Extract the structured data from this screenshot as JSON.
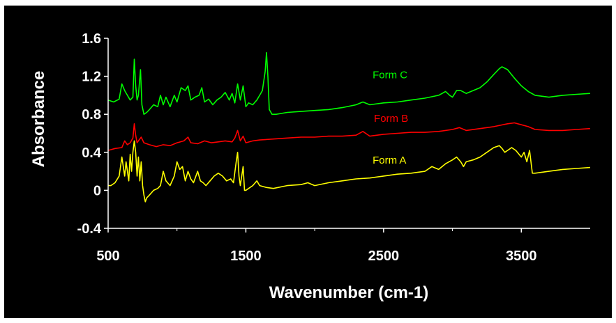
{
  "chart_data": {
    "type": "line",
    "title": "",
    "xlabel": "Wavenumber (cm-1)",
    "ylabel": "Absorbance",
    "xlim": [
      500,
      4000
    ],
    "ylim": [
      -0.4,
      1.6
    ],
    "xticks": [
      500,
      1500,
      2500,
      3500
    ],
    "yticks": [
      -0.4,
      0,
      0.4,
      0.8,
      1.2,
      1.6
    ],
    "xtick_labels": [
      "500",
      "1500",
      "2500",
      "3500"
    ],
    "ytick_labels": [
      "-0.4",
      "0",
      "0.4",
      "0.8",
      "1.2",
      "1.6"
    ],
    "grid": false,
    "legend": "inline labels",
    "background": "#000000",
    "axis_color": "#ffffff",
    "series": [
      {
        "name": "Form C",
        "color": "#00ff00",
        "label_at": [
          2420,
          1.18
        ],
        "x": [
          500,
          540,
          580,
          600,
          620,
          640,
          660,
          680,
          690,
          700,
          710,
          720,
          735,
          745,
          760,
          780,
          800,
          830,
          860,
          880,
          900,
          920,
          950,
          980,
          1000,
          1030,
          1060,
          1080,
          1100,
          1130,
          1160,
          1180,
          1200,
          1230,
          1260,
          1290,
          1320,
          1350,
          1380,
          1400,
          1420,
          1440,
          1460,
          1480,
          1500,
          1520,
          1550,
          1580,
          1600,
          1620,
          1640,
          1650,
          1660,
          1670,
          1690,
          1720,
          1800,
          1900,
          2000,
          2100,
          2200,
          2300,
          2350,
          2400,
          2500,
          2600,
          2700,
          2800,
          2900,
          2950,
          2980,
          3000,
          3030,
          3060,
          3100,
          3150,
          3200,
          3250,
          3300,
          3340,
          3360,
          3400,
          3450,
          3500,
          3550,
          3600,
          3700,
          3800,
          3900,
          4000
        ],
        "y": [
          0.95,
          0.93,
          0.96,
          1.12,
          1.05,
          1.0,
          0.95,
          0.98,
          1.38,
          1.1,
          0.95,
          1.0,
          1.27,
          0.9,
          0.8,
          0.82,
          0.85,
          0.9,
          0.88,
          1.0,
          0.9,
          0.98,
          0.88,
          1.0,
          0.93,
          1.08,
          1.05,
          1.1,
          0.95,
          0.98,
          1.0,
          1.08,
          0.93,
          0.96,
          0.9,
          0.95,
          0.98,
          1.03,
          0.95,
          1.02,
          0.92,
          1.12,
          0.95,
          1.1,
          0.88,
          0.92,
          0.9,
          0.95,
          1.0,
          1.05,
          1.25,
          1.45,
          1.2,
          0.85,
          0.8,
          0.8,
          0.82,
          0.83,
          0.84,
          0.85,
          0.87,
          0.9,
          0.93,
          0.9,
          0.92,
          0.93,
          0.95,
          0.97,
          1.0,
          1.04,
          1.0,
          0.98,
          1.05,
          1.05,
          1.02,
          1.05,
          1.08,
          1.14,
          1.22,
          1.28,
          1.3,
          1.27,
          1.18,
          1.1,
          1.04,
          1.0,
          0.98,
          1.0,
          1.01,
          1.02
        ]
      },
      {
        "name": "Form B",
        "color": "#ff0000",
        "label_at": [
          2430,
          0.72
        ],
        "x": [
          500,
          550,
          600,
          620,
          640,
          660,
          680,
          690,
          700,
          710,
          720,
          740,
          760,
          800,
          850,
          900,
          950,
          1000,
          1050,
          1080,
          1100,
          1150,
          1200,
          1250,
          1300,
          1350,
          1400,
          1420,
          1440,
          1460,
          1480,
          1500,
          1550,
          1600,
          1700,
          1800,
          1900,
          2000,
          2100,
          2200,
          2300,
          2350,
          2400,
          2500,
          2600,
          2700,
          2800,
          2900,
          3000,
          3050,
          3100,
          3200,
          3300,
          3400,
          3450,
          3500,
          3550,
          3600,
          3700,
          3800,
          3900,
          4000
        ],
        "y": [
          0.42,
          0.44,
          0.45,
          0.52,
          0.48,
          0.5,
          0.55,
          0.7,
          0.58,
          0.5,
          0.52,
          0.56,
          0.5,
          0.48,
          0.46,
          0.48,
          0.47,
          0.5,
          0.52,
          0.56,
          0.5,
          0.49,
          0.52,
          0.5,
          0.51,
          0.52,
          0.51,
          0.55,
          0.63,
          0.52,
          0.57,
          0.5,
          0.52,
          0.53,
          0.54,
          0.55,
          0.56,
          0.56,
          0.57,
          0.57,
          0.58,
          0.62,
          0.57,
          0.59,
          0.6,
          0.61,
          0.61,
          0.62,
          0.64,
          0.66,
          0.63,
          0.65,
          0.67,
          0.7,
          0.71,
          0.69,
          0.67,
          0.64,
          0.63,
          0.63,
          0.64,
          0.65
        ]
      },
      {
        "name": "Form A",
        "color": "#ffff00",
        "label_at": [
          2420,
          0.28
        ],
        "x": [
          500,
          520,
          550,
          580,
          600,
          620,
          630,
          650,
          660,
          670,
          680,
          690,
          700,
          710,
          720,
          730,
          740,
          750,
          760,
          770,
          780,
          800,
          830,
          860,
          880,
          900,
          920,
          950,
          980,
          1000,
          1020,
          1040,
          1060,
          1080,
          1100,
          1120,
          1150,
          1170,
          1190,
          1210,
          1240,
          1270,
          1300,
          1330,
          1360,
          1390,
          1410,
          1430,
          1440,
          1450,
          1460,
          1480,
          1490,
          1500,
          1520,
          1550,
          1580,
          1600,
          1650,
          1700,
          1800,
          1900,
          1950,
          2000,
          2100,
          2200,
          2300,
          2400,
          2500,
          2600,
          2700,
          2800,
          2850,
          2900,
          2950,
          3000,
          3030,
          3060,
          3080,
          3100,
          3150,
          3200,
          3250,
          3300,
          3340,
          3360,
          3380,
          3400,
          3430,
          3460,
          3500,
          3520,
          3540,
          3560,
          3580,
          3600,
          3700,
          3800,
          3900,
          4000
        ],
        "y": [
          0.05,
          0.05,
          0.08,
          0.15,
          0.35,
          0.15,
          0.3,
          0.1,
          0.38,
          0.2,
          0.4,
          0.52,
          0.4,
          0.15,
          0.35,
          0.1,
          0.3,
          0.05,
          -0.05,
          -0.12,
          -0.08,
          -0.05,
          0.0,
          0.02,
          0.05,
          0.2,
          0.1,
          0.05,
          0.15,
          0.3,
          0.22,
          0.25,
          0.1,
          0.2,
          0.12,
          0.08,
          0.2,
          0.1,
          0.08,
          0.05,
          0.1,
          0.15,
          0.18,
          0.15,
          0.1,
          0.12,
          0.08,
          0.3,
          0.4,
          0.15,
          0.05,
          0.25,
          0.0,
          0.0,
          0.02,
          0.05,
          0.1,
          0.05,
          0.03,
          0.02,
          0.05,
          0.06,
          0.08,
          0.05,
          0.08,
          0.1,
          0.12,
          0.13,
          0.15,
          0.17,
          0.18,
          0.2,
          0.25,
          0.22,
          0.28,
          0.32,
          0.35,
          0.3,
          0.25,
          0.3,
          0.32,
          0.35,
          0.4,
          0.45,
          0.47,
          0.44,
          0.4,
          0.42,
          0.45,
          0.42,
          0.35,
          0.4,
          0.3,
          0.42,
          0.18,
          0.18,
          0.2,
          0.22,
          0.23,
          0.24
        ]
      }
    ]
  }
}
